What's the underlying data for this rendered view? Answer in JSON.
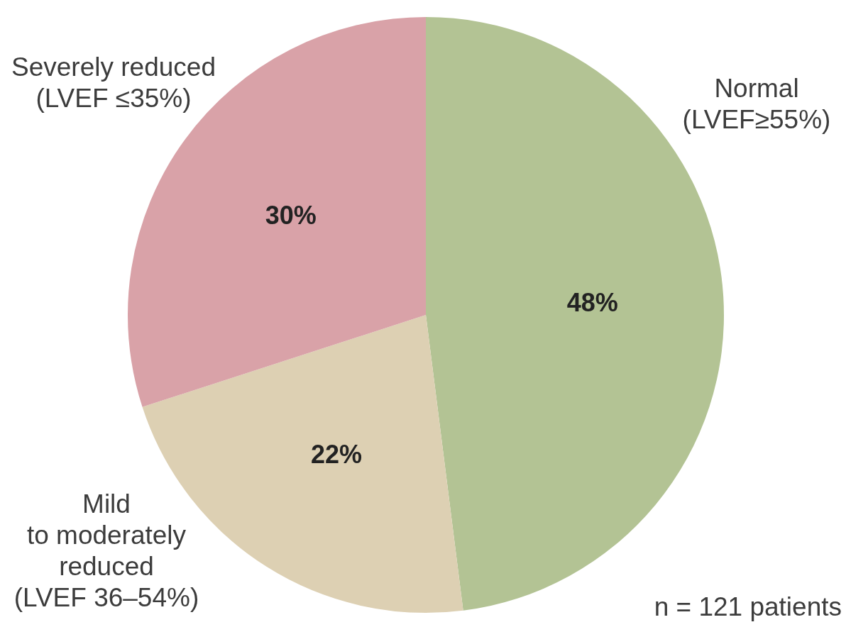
{
  "chart_data": {
    "type": "pie",
    "categories": [
      "Normal\n(LVEF≥55%)",
      "Mild\nto moderately\nreduced\n(LVEF 36–54%)",
      "Severely reduced\n(LVEF ≤35%)"
    ],
    "values": [
      48,
      22,
      30
    ],
    "colors": [
      "#b3c394",
      "#ddd0b3",
      "#d9a2a8"
    ],
    "value_labels": [
      "48%",
      "22%",
      "30%"
    ],
    "annotations": [
      "n = 121 patients"
    ]
  }
}
